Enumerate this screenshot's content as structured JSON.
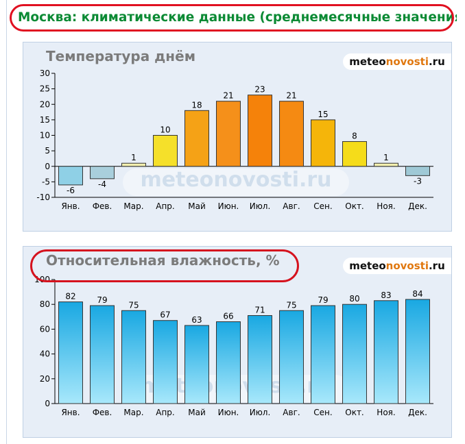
{
  "page_title": "Москва: климатические данные (среднемесячные значения)",
  "brand": {
    "prefix": "meteo",
    "accent": "novosti",
    "suffix": ".ru"
  },
  "watermark": "meteonovosti.ru",
  "colors": {
    "title_green": "#0b8a34",
    "highlight_red": "#e01020",
    "panel_bg": "#e7eef7",
    "humidity_top": "#19a8e2",
    "humidity_bottom": "#a8e8fb",
    "negative_temp": "#8fd0e6"
  },
  "chart_data": [
    {
      "type": "bar",
      "title": "Температура днём",
      "categories": [
        "Янв.",
        "Фев.",
        "Мар.",
        "Апр.",
        "Май",
        "Июн.",
        "Июл.",
        "Авг.",
        "Сен.",
        "Окт.",
        "Ноя.",
        "Дек."
      ],
      "values": [
        -6,
        -4,
        1,
        10,
        18,
        21,
        23,
        21,
        15,
        8,
        1,
        -3
      ],
      "ylim": [
        -10,
        30
      ],
      "yticks": [
        30,
        25,
        20,
        15,
        10,
        5,
        0,
        -5,
        -10
      ],
      "grid": false,
      "bar_colors": [
        "#8fd0e6",
        "#a9cfdc",
        "#f4f0b0",
        "#f5e02a",
        "#f5a216",
        "#f5901a",
        "#f5820a",
        "#f58a12",
        "#f5b50a",
        "#f5dc1a",
        "#f4f0b0",
        "#9fc9d6"
      ]
    },
    {
      "type": "bar",
      "title": "Относительная влажность, %",
      "categories": [
        "Янв.",
        "Фев.",
        "Мар.",
        "Апр.",
        "Май",
        "Июн.",
        "Июл.",
        "Авг.",
        "Сен.",
        "Окт.",
        "Ноя.",
        "Дек."
      ],
      "values": [
        82,
        79,
        75,
        67,
        63,
        66,
        71,
        75,
        79,
        80,
        83,
        84
      ],
      "ylim": [
        0,
        100
      ],
      "yticks": [
        100,
        80,
        60,
        40,
        20,
        0
      ],
      "grid": false
    }
  ]
}
